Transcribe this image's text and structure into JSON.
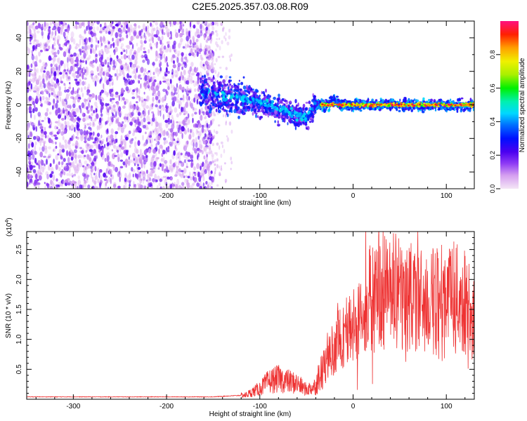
{
  "title": "C2E5.2025.357.03.08.R09",
  "chart_data": [
    {
      "type": "heatmap",
      "xlabel": "Height of straight line (km)",
      "ylabel": "Frequency (Hz)",
      "xlim": [
        -350,
        130
      ],
      "ylim": [
        -50,
        50
      ],
      "xticks": [
        -300,
        -200,
        -100,
        0,
        100
      ],
      "yticks": [
        -40,
        -20,
        0,
        20,
        40
      ],
      "colorbar": {
        "label": "Normalized spectral amplitude",
        "range": [
          0,
          1
        ],
        "ticks": [
          "0.0",
          "0.2",
          "0.4",
          "0.6",
          "0.8"
        ],
        "colors": [
          "#f4e6f6",
          "#d59ff0",
          "#8f3cf4",
          "#4b00f0",
          "#0010ff",
          "#0070ff",
          "#00d8ff",
          "#00f0b0",
          "#00f000",
          "#a8f000",
          "#f0f000",
          "#ffa000",
          "#ff2000",
          "#ff1080"
        ]
      },
      "structure": [
        {
          "region": "broadband noise",
          "x_range": [
            -350,
            -150
          ],
          "freq_range": [
            -50,
            50
          ],
          "amplitude": "low (0.0-0.2)"
        },
        {
          "region": "sparse tail",
          "x_range": [
            -150,
            -130
          ],
          "freq_range": [
            -50,
            50
          ],
          "amplitude": "very low"
        },
        {
          "region": "emerging narrowband",
          "x_range": [
            -165,
            -45
          ],
          "freq_range": [
            -15,
            15
          ],
          "amplitude": "0.1-0.4"
        },
        {
          "region": "stable narrowband line",
          "x_range": [
            -40,
            130
          ],
          "freq_center": 0,
          "amplitude": "0.6-1.0"
        }
      ]
    },
    {
      "type": "line",
      "xlabel": "Height of straight line (km)",
      "ylabel": "SNR (10 * v/v)",
      "y_multiplier": "(x10^4)",
      "xlim": [
        -350,
        130
      ],
      "ylim": [
        0,
        28000
      ],
      "xticks": [
        -300,
        -200,
        -100,
        0,
        100
      ],
      "yticks": [
        "0.5",
        "1.0",
        "1.5",
        "2.0",
        "2.5"
      ],
      "ytick_values": [
        5000,
        10000,
        15000,
        20000,
        25000
      ],
      "series": [
        {
          "name": "SNR",
          "color": "#ee3333",
          "x": [
            -350,
            -250,
            -150,
            -115,
            -100,
            -90,
            -80,
            -70,
            -60,
            -50,
            -40,
            -30,
            -20,
            -10,
            0,
            10,
            20,
            30,
            40,
            50,
            60,
            70,
            80,
            90,
            100,
            110,
            120,
            130
          ],
          "y": [
            400,
            400,
            400,
            700,
            1800,
            3000,
            3400,
            3000,
            2600,
            1600,
            2200,
            5500,
            9000,
            11000,
            12000,
            15000,
            17000,
            17500,
            18000,
            18000,
            17000,
            16500,
            16000,
            16500,
            17500,
            17000,
            16000,
            13500
          ]
        }
      ]
    }
  ]
}
